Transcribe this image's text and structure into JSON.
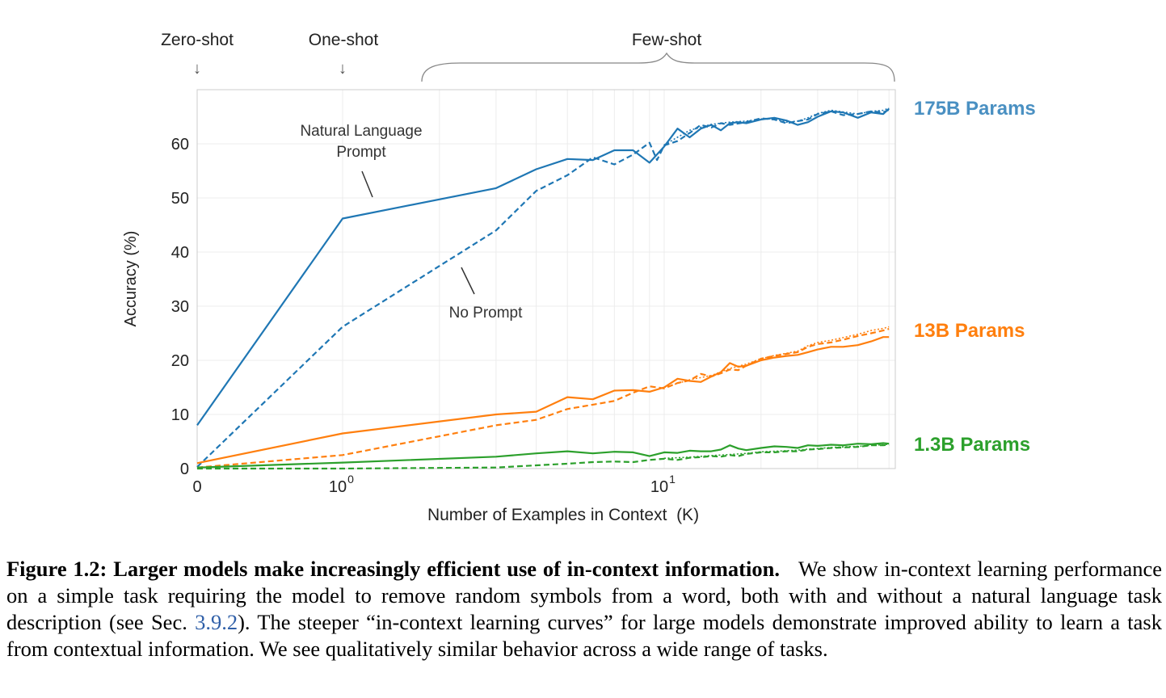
{
  "chart_data": {
    "type": "line",
    "xlabel": "Number of Examples in Context  (K)",
    "ylabel": "Accuracy (%)",
    "x_scale": "symlog (0, then log10)",
    "xlim": [
      0,
      50
    ],
    "ylim": [
      0,
      70
    ],
    "x_ticks": [
      {
        "value": 0,
        "label": "0"
      },
      {
        "value": 1,
        "label": "10",
        "exp": "0"
      },
      {
        "value": 10,
        "label": "10",
        "exp": "1"
      }
    ],
    "y_ticks": [
      0,
      10,
      20,
      30,
      40,
      50,
      60
    ],
    "grid": true,
    "top_annotations": [
      {
        "label": "Zero-shot",
        "marker": "↓",
        "at_x": 0
      },
      {
        "label": "One-shot",
        "marker": "↓",
        "at_x": 1
      },
      {
        "label": "Few-shot",
        "marker": "brace",
        "from_x": 1.8,
        "to_x": 50
      }
    ],
    "annotations": [
      {
        "lines": [
          "Natural Language",
          "Prompt"
        ],
        "points_to": "solid line"
      },
      {
        "lines": [
          "No Prompt"
        ],
        "points_to": "dashed line"
      }
    ],
    "series_labels": [
      {
        "text": "175B Params",
        "color": "#4a90c2"
      },
      {
        "text": "13B Params",
        "color": "#ff7f0e"
      },
      {
        "text": "1.3B Params",
        "color": "#2ca02c"
      }
    ],
    "series": [
      {
        "model": "175B",
        "prompt": "natural-language",
        "style": "solid",
        "color": "#1f77b4",
        "points": [
          [
            0,
            8
          ],
          [
            1,
            46.2
          ],
          [
            3,
            51.8
          ],
          [
            4,
            55.3
          ],
          [
            5,
            57.2
          ],
          [
            6,
            57
          ],
          [
            7,
            58.8
          ],
          [
            8,
            58.8
          ],
          [
            9,
            56.5
          ],
          [
            10,
            59.5
          ],
          [
            11,
            62.8
          ],
          [
            12,
            61.2
          ],
          [
            13,
            62.8
          ],
          [
            14,
            63.5
          ],
          [
            15,
            62.5
          ],
          [
            16,
            63.8
          ],
          [
            17,
            64
          ],
          [
            18,
            63.8
          ],
          [
            20,
            64.5
          ],
          [
            22,
            64.8
          ],
          [
            24,
            64.3
          ],
          [
            26,
            63.5
          ],
          [
            28,
            64
          ],
          [
            30,
            65
          ],
          [
            33,
            66
          ],
          [
            36,
            65.8
          ],
          [
            40,
            64.8
          ],
          [
            44,
            65.8
          ],
          [
            48,
            65.5
          ],
          [
            50,
            66.5
          ]
        ]
      },
      {
        "model": "175B",
        "prompt": "none",
        "style": "dashed",
        "color": "#1f77b4",
        "points": [
          [
            0,
            0.3
          ],
          [
            1,
            26.2
          ],
          [
            3,
            44
          ],
          [
            4,
            51.3
          ],
          [
            5,
            54.2
          ],
          [
            6,
            57.5
          ],
          [
            7,
            56.2
          ],
          [
            8,
            58
          ],
          [
            9,
            60.2
          ],
          [
            9.5,
            57
          ],
          [
            10,
            59.7
          ],
          [
            11,
            60.5
          ],
          [
            12,
            62
          ],
          [
            13,
            63.5
          ],
          [
            14,
            63
          ],
          [
            15,
            63.8
          ],
          [
            16,
            63.5
          ],
          [
            18,
            64
          ],
          [
            20,
            64.7
          ],
          [
            22,
            64.5
          ],
          [
            24,
            63.8
          ],
          [
            26,
            64.2
          ],
          [
            28,
            64.5
          ],
          [
            30,
            65.5
          ],
          [
            33,
            66
          ],
          [
            36,
            65.3
          ],
          [
            40,
            65.5
          ],
          [
            44,
            66
          ],
          [
            48,
            65.8
          ],
          [
            50,
            66.3
          ]
        ]
      },
      {
        "model": "175B",
        "prompt": "extra",
        "style": "dotted",
        "color": "#1f77b4",
        "points": [
          [
            10,
            59.8
          ],
          [
            12,
            62.5
          ],
          [
            14,
            63.6
          ],
          [
            16,
            64
          ],
          [
            18,
            64.2
          ],
          [
            20,
            64.6
          ],
          [
            22,
            64.6
          ],
          [
            24,
            64
          ],
          [
            26,
            64.2
          ],
          [
            28,
            64.8
          ],
          [
            30,
            65.6
          ],
          [
            33,
            66.2
          ],
          [
            36,
            65.9
          ],
          [
            40,
            65.5
          ],
          [
            44,
            66
          ],
          [
            48,
            66.2
          ],
          [
            50,
            66.6
          ]
        ]
      },
      {
        "model": "13B",
        "prompt": "natural-language",
        "style": "solid",
        "color": "#ff7f0e",
        "points": [
          [
            0,
            1
          ],
          [
            1,
            6.5
          ],
          [
            3,
            10
          ],
          [
            4,
            10.5
          ],
          [
            5,
            13.2
          ],
          [
            6,
            12.8
          ],
          [
            7,
            14.4
          ],
          [
            8,
            14.5
          ],
          [
            9,
            14.2
          ],
          [
            10,
            15
          ],
          [
            11,
            16.6
          ],
          [
            12,
            16.2
          ],
          [
            13,
            16
          ],
          [
            14,
            17
          ],
          [
            15,
            17.8
          ],
          [
            16,
            19.5
          ],
          [
            17,
            18.8
          ],
          [
            18,
            19
          ],
          [
            20,
            20
          ],
          [
            22,
            20.5
          ],
          [
            24,
            20.8
          ],
          [
            26,
            21
          ],
          [
            28,
            21.5
          ],
          [
            30,
            22
          ],
          [
            33,
            22.5
          ],
          [
            36,
            22.5
          ],
          [
            40,
            22.8
          ],
          [
            44,
            23.5
          ],
          [
            48,
            24.3
          ],
          [
            50,
            24.3
          ]
        ]
      },
      {
        "model": "13B",
        "prompt": "none",
        "style": "dashed",
        "color": "#ff7f0e",
        "points": [
          [
            0,
            0.2
          ],
          [
            1,
            2.5
          ],
          [
            3,
            8
          ],
          [
            4,
            9
          ],
          [
            5,
            11
          ],
          [
            6,
            11.8
          ],
          [
            7,
            12.5
          ],
          [
            8,
            14
          ],
          [
            9,
            15.2
          ],
          [
            10,
            14.8
          ],
          [
            11,
            15.8
          ],
          [
            12,
            16.3
          ],
          [
            13,
            17.5
          ],
          [
            14,
            17
          ],
          [
            15,
            17.6
          ],
          [
            16,
            18.3
          ],
          [
            17,
            18.2
          ],
          [
            18,
            19
          ],
          [
            20,
            20.3
          ],
          [
            22,
            20.8
          ],
          [
            24,
            21.2
          ],
          [
            26,
            21.5
          ],
          [
            28,
            22.5
          ],
          [
            30,
            23
          ],
          [
            33,
            23.3
          ],
          [
            36,
            23.8
          ],
          [
            40,
            24.5
          ],
          [
            44,
            25
          ],
          [
            48,
            25.5
          ],
          [
            50,
            25.8
          ]
        ]
      },
      {
        "model": "13B",
        "prompt": "extra",
        "style": "dotted",
        "color": "#ff7f0e",
        "points": [
          [
            10,
            15
          ],
          [
            12,
            16.4
          ],
          [
            14,
            17.2
          ],
          [
            16,
            18.5
          ],
          [
            18,
            19.3
          ],
          [
            20,
            20.3
          ],
          [
            22,
            20.9
          ],
          [
            24,
            21.3
          ],
          [
            26,
            21.7
          ],
          [
            28,
            22.7
          ],
          [
            30,
            23.3
          ],
          [
            33,
            23.7
          ],
          [
            36,
            24.2
          ],
          [
            40,
            24.8
          ],
          [
            44,
            25.5
          ],
          [
            48,
            25.9
          ],
          [
            50,
            26.2
          ]
        ]
      },
      {
        "model": "1.3B",
        "prompt": "natural-language",
        "style": "solid",
        "color": "#2ca02c",
        "points": [
          [
            0,
            0.2
          ],
          [
            1,
            1.1
          ],
          [
            3,
            2.2
          ],
          [
            4,
            2.8
          ],
          [
            5,
            3.2
          ],
          [
            6,
            2.8
          ],
          [
            7,
            3.1
          ],
          [
            8,
            3
          ],
          [
            9,
            2.3
          ],
          [
            10,
            3
          ],
          [
            11,
            2.9
          ],
          [
            12,
            3.3
          ],
          [
            13,
            3.2
          ],
          [
            14,
            3.2
          ],
          [
            15,
            3.5
          ],
          [
            16,
            4.3
          ],
          [
            17,
            3.7
          ],
          [
            18,
            3.4
          ],
          [
            20,
            3.8
          ],
          [
            22,
            4.1
          ],
          [
            24,
            4
          ],
          [
            26,
            3.8
          ],
          [
            28,
            4.3
          ],
          [
            30,
            4.2
          ],
          [
            33,
            4.4
          ],
          [
            36,
            4.3
          ],
          [
            40,
            4.6
          ],
          [
            44,
            4.5
          ],
          [
            48,
            4.7
          ],
          [
            50,
            4.6
          ]
        ]
      },
      {
        "model": "1.3B",
        "prompt": "none",
        "style": "dashed",
        "color": "#2ca02c",
        "points": [
          [
            0,
            0
          ],
          [
            1,
            0
          ],
          [
            3,
            0.2
          ],
          [
            4,
            0.6
          ],
          [
            5,
            0.9
          ],
          [
            6,
            1.2
          ],
          [
            7,
            1.3
          ],
          [
            8,
            1.2
          ],
          [
            9,
            1.6
          ],
          [
            10,
            1.8
          ],
          [
            11,
            1.6
          ],
          [
            12,
            2
          ],
          [
            13,
            2.1
          ],
          [
            14,
            2.3
          ],
          [
            15,
            2.2
          ],
          [
            16,
            2.5
          ],
          [
            17,
            2.3
          ],
          [
            18,
            2.7
          ],
          [
            20,
            3
          ],
          [
            22,
            3
          ],
          [
            24,
            3.2
          ],
          [
            26,
            3.2
          ],
          [
            28,
            3.5
          ],
          [
            30,
            3.6
          ],
          [
            33,
            3.8
          ],
          [
            36,
            3.9
          ],
          [
            40,
            4
          ],
          [
            44,
            4.3
          ],
          [
            48,
            4.3
          ],
          [
            50,
            4.4
          ]
        ]
      },
      {
        "model": "1.3B",
        "prompt": "extra",
        "style": "dotted",
        "color": "#2ca02c",
        "points": [
          [
            10,
            1.9
          ],
          [
            12,
            2.1
          ],
          [
            14,
            2.4
          ],
          [
            16,
            2.6
          ],
          [
            18,
            2.8
          ],
          [
            20,
            3.1
          ],
          [
            22,
            3.2
          ],
          [
            24,
            3.3
          ],
          [
            26,
            3.4
          ],
          [
            28,
            3.6
          ],
          [
            30,
            3.7
          ],
          [
            33,
            3.9
          ],
          [
            36,
            4
          ],
          [
            40,
            4.1
          ],
          [
            44,
            4.3
          ],
          [
            48,
            4.4
          ],
          [
            50,
            4.5
          ]
        ]
      }
    ]
  },
  "caption": {
    "label": "Figure 1.2:",
    "title": "Larger models make increasingly efficient use of in-context information.",
    "text_1": "We show in-context learning performance on a simple task requiring the model to remove random symbols from a word, both with and without a natural language task description (see Sec.",
    "ref": "3.9.2",
    "text_2": "). The steeper “in-context learning curves” for large models demonstrate improved ability to learn a task from contextual information. We see qualitatively similar behavior across a wide range of tasks."
  }
}
